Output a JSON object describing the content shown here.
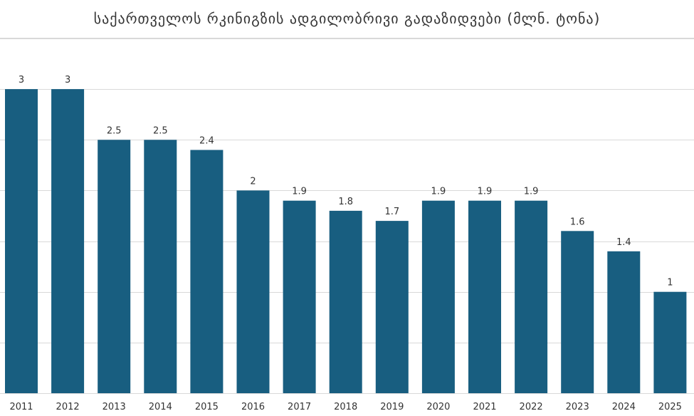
{
  "chart_data": {
    "type": "bar",
    "title": "საქართველოს რკინიგზის ადგილობრივი გადაზიდვები (მლნ. ტონა)",
    "categories": [
      "2011",
      "2012",
      "2013",
      "2014",
      "2015",
      "2016",
      "2017",
      "2018",
      "2019",
      "2020",
      "2021",
      "2022",
      "2023",
      "2024",
      "2025"
    ],
    "values": [
      3,
      3,
      2.5,
      2.5,
      2.4,
      2,
      1.9,
      1.8,
      1.7,
      1.9,
      1.9,
      1.9,
      1.6,
      1.4,
      1
    ],
    "ylim": [
      0,
      3.5
    ],
    "y_gridlines": [
      0,
      0.5,
      1,
      1.5,
      2,
      2.5,
      3,
      3.5
    ],
    "grid": true,
    "bar_color": "#185e80",
    "data_labels": true,
    "y_axis_labels_shown": false
  }
}
